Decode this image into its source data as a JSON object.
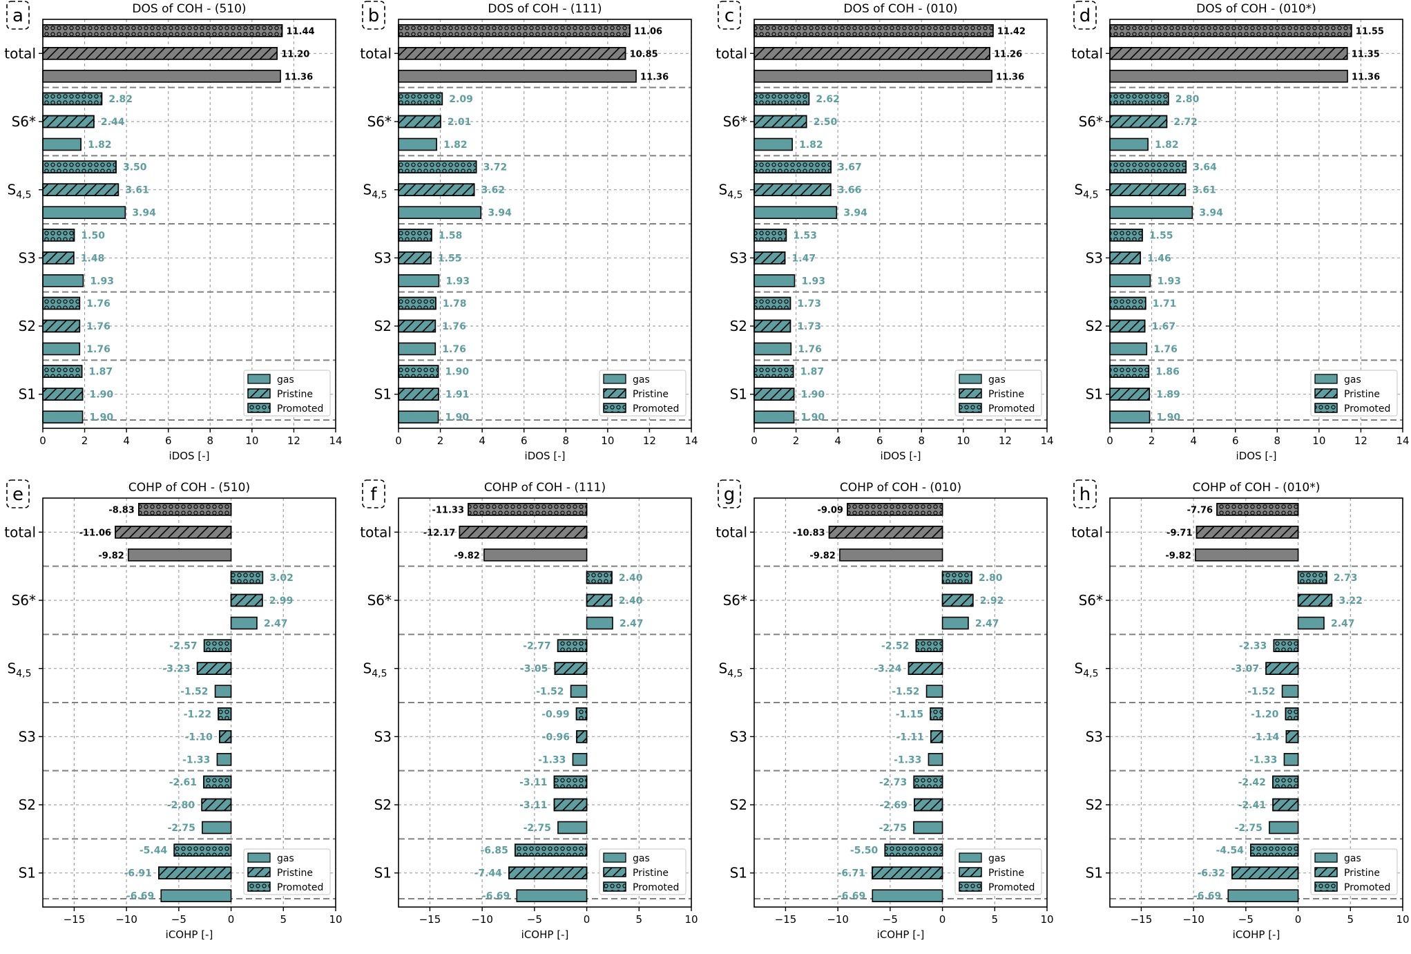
{
  "figure": {
    "colors": {
      "bar_fill": "#5f9ea0",
      "total_fill": "#808080",
      "value_text": "#5f9ea0",
      "total_text": "#000000",
      "grid": "#a0a0a0",
      "separator": "#808080"
    },
    "legend": {
      "placement": "lower-right",
      "entries": [
        {
          "label": "gas",
          "pattern": "solid"
        },
        {
          "label": "Pristine",
          "pattern": "hatch"
        },
        {
          "label": "Promoted",
          "pattern": "circles"
        }
      ]
    },
    "y_categories": [
      "total",
      "S6*",
      "S4,5",
      "S3",
      "S2",
      "S1"
    ],
    "y_tick_labels": [
      {
        "main": "total",
        "sub": ""
      },
      {
        "main": "S6*",
        "sub": ""
      },
      {
        "main": "S",
        "sub": "4,5"
      },
      {
        "main": "S3",
        "sub": ""
      },
      {
        "main": "S2",
        "sub": ""
      },
      {
        "main": "S1",
        "sub": ""
      }
    ]
  },
  "chart_data": [
    {
      "panel_label": "a",
      "type": "bar",
      "orientation": "horizontal",
      "title": "DOS of COH - (510)",
      "xlabel": "iDOS [-]",
      "xlim": [
        0,
        14
      ],
      "xticks": [
        0,
        2,
        4,
        6,
        8,
        10,
        12,
        14
      ],
      "xtick_labels": [
        "0",
        "2",
        "4",
        "6",
        "8",
        "10",
        "12",
        "14"
      ],
      "grid": true,
      "series": [
        {
          "name": "gas",
          "values": [
            11.36,
            1.82,
            3.94,
            1.93,
            1.76,
            1.9
          ]
        },
        {
          "name": "Pristine",
          "values": [
            11.2,
            2.44,
            3.61,
            1.48,
            1.76,
            1.9
          ]
        },
        {
          "name": "Promoted",
          "values": [
            11.44,
            2.82,
            3.5,
            1.5,
            1.76,
            1.87
          ]
        }
      ],
      "data_labels": {
        "gas": [
          "11.36",
          "1.82",
          "3.94",
          "1.93",
          "1.76",
          "1.90"
        ],
        "Pristine": [
          "11.20",
          "2.44",
          "3.61",
          "1.48",
          "1.76",
          "1.90"
        ],
        "Promoted": [
          "11.44",
          "2.82",
          "3.50",
          "1.50",
          "1.76",
          "1.87"
        ]
      }
    },
    {
      "panel_label": "b",
      "type": "bar",
      "orientation": "horizontal",
      "title": "DOS of COH - (111)",
      "xlabel": "iDOS [-]",
      "xlim": [
        0,
        14
      ],
      "xticks": [
        0,
        2,
        4,
        6,
        8,
        10,
        12,
        14
      ],
      "xtick_labels": [
        "0",
        "2",
        "4",
        "6",
        "8",
        "10",
        "12",
        "14"
      ],
      "grid": true,
      "series": [
        {
          "name": "gas",
          "values": [
            11.36,
            1.82,
            3.94,
            1.93,
            1.76,
            1.9
          ]
        },
        {
          "name": "Pristine",
          "values": [
            10.85,
            2.01,
            3.62,
            1.55,
            1.76,
            1.91
          ]
        },
        {
          "name": "Promoted",
          "values": [
            11.06,
            2.09,
            3.72,
            1.58,
            1.78,
            1.9
          ]
        }
      ],
      "data_labels": {
        "gas": [
          "11.36",
          "1.82",
          "3.94",
          "1.93",
          "1.76",
          "1.90"
        ],
        "Pristine": [
          "10.85",
          "2.01",
          "3.62",
          "1.55",
          "1.76",
          "1.91"
        ],
        "Promoted": [
          "11.06",
          "2.09",
          "3.72",
          "1.58",
          "1.78",
          "1.90"
        ]
      }
    },
    {
      "panel_label": "c",
      "type": "bar",
      "orientation": "horizontal",
      "title": "DOS of COH - (010)",
      "xlabel": "iDOS [-]",
      "xlim": [
        0,
        14
      ],
      "xticks": [
        0,
        2,
        4,
        6,
        8,
        10,
        12,
        14
      ],
      "xtick_labels": [
        "0",
        "2",
        "4",
        "6",
        "8",
        "10",
        "12",
        "14"
      ],
      "grid": true,
      "series": [
        {
          "name": "gas",
          "values": [
            11.36,
            1.82,
            3.94,
            1.93,
            1.76,
            1.9
          ]
        },
        {
          "name": "Pristine",
          "values": [
            11.26,
            2.5,
            3.66,
            1.47,
            1.73,
            1.9
          ]
        },
        {
          "name": "Promoted",
          "values": [
            11.42,
            2.62,
            3.67,
            1.53,
            1.73,
            1.87
          ]
        }
      ],
      "data_labels": {
        "gas": [
          "11.36",
          "1.82",
          "3.94",
          "1.93",
          "1.76",
          "1.90"
        ],
        "Pristine": [
          "11.26",
          "2.50",
          "3.66",
          "1.47",
          "1.73",
          "1.90"
        ],
        "Promoted": [
          "11.42",
          "2.62",
          "3.67",
          "1.53",
          "1.73",
          "1.87"
        ]
      }
    },
    {
      "panel_label": "d",
      "type": "bar",
      "orientation": "horizontal",
      "title": "DOS of COH - (010*)",
      "xlabel": "iDOS [-]",
      "xlim": [
        0,
        14
      ],
      "xticks": [
        0,
        2,
        4,
        6,
        8,
        10,
        12,
        14
      ],
      "xtick_labels": [
        "0",
        "2",
        "4",
        "6",
        "8",
        "10",
        "12",
        "14"
      ],
      "grid": true,
      "series": [
        {
          "name": "gas",
          "values": [
            11.36,
            1.82,
            3.94,
            1.93,
            1.76,
            1.9
          ]
        },
        {
          "name": "Pristine",
          "values": [
            11.35,
            2.72,
            3.61,
            1.46,
            1.67,
            1.89
          ]
        },
        {
          "name": "Promoted",
          "values": [
            11.55,
            2.8,
            3.64,
            1.55,
            1.71,
            1.86
          ]
        }
      ],
      "data_labels": {
        "gas": [
          "11.36",
          "1.82",
          "3.94",
          "1.93",
          "1.76",
          "1.90"
        ],
        "Pristine": [
          "11.35",
          "2.72",
          "3.61",
          "1.46",
          "1.67",
          "1.89"
        ],
        "Promoted": [
          "11.55",
          "2.80",
          "3.64",
          "1.55",
          "1.71",
          "1.86"
        ]
      }
    },
    {
      "panel_label": "e",
      "type": "bar",
      "orientation": "horizontal",
      "title": "COHP of COH - (510)",
      "xlabel": "iCOHP [-]",
      "xlim": [
        -18,
        10
      ],
      "xticks": [
        -15,
        -10,
        -5,
        0,
        5,
        10
      ],
      "xtick_labels": [
        "−15",
        "−10",
        "−5",
        "0",
        "5",
        "10"
      ],
      "grid": true,
      "series": [
        {
          "name": "gas",
          "values": [
            -9.82,
            2.47,
            -1.52,
            -1.33,
            -2.75,
            -6.69
          ]
        },
        {
          "name": "Pristine",
          "values": [
            -11.06,
            2.99,
            -3.23,
            -1.1,
            -2.8,
            -6.91
          ]
        },
        {
          "name": "Promoted",
          "values": [
            -8.83,
            3.02,
            -2.57,
            -1.22,
            -2.61,
            -5.44
          ]
        }
      ],
      "data_labels": {
        "gas": [
          "-9.82",
          "2.47",
          "-1.52",
          "-1.33",
          "-2.75",
          "-6.69"
        ],
        "Pristine": [
          "-11.06",
          "2.99",
          "-3.23",
          "-1.10",
          "-2.80",
          "-6.91"
        ],
        "Promoted": [
          "-8.83",
          "3.02",
          "-2.57",
          "-1.22",
          "-2.61",
          "-5.44"
        ]
      }
    },
    {
      "panel_label": "f",
      "type": "bar",
      "orientation": "horizontal",
      "title": "COHP of COH - (111)",
      "xlabel": "iCOHP [-]",
      "xlim": [
        -18,
        10
      ],
      "xticks": [
        -15,
        -10,
        -5,
        0,
        5,
        10
      ],
      "xtick_labels": [
        "−15",
        "−10",
        "−5",
        "0",
        "5",
        "10"
      ],
      "grid": true,
      "series": [
        {
          "name": "gas",
          "values": [
            -9.82,
            2.47,
            -1.52,
            -1.33,
            -2.75,
            -6.69
          ]
        },
        {
          "name": "Pristine",
          "values": [
            -12.17,
            2.4,
            -3.05,
            -0.96,
            -3.11,
            -7.44
          ]
        },
        {
          "name": "Promoted",
          "values": [
            -11.33,
            2.4,
            -2.77,
            -0.99,
            -3.11,
            -6.85
          ]
        }
      ],
      "data_labels": {
        "gas": [
          "-9.82",
          "2.47",
          "-1.52",
          "-1.33",
          "-2.75",
          "-6.69"
        ],
        "Pristine": [
          "-12.17",
          "2.40",
          "-3.05",
          "-0.96",
          "-3.11",
          "-7.44"
        ],
        "Promoted": [
          "-11.33",
          "2.40",
          "-2.77",
          "-0.99",
          "-3.11",
          "-6.85"
        ]
      }
    },
    {
      "panel_label": "g",
      "type": "bar",
      "orientation": "horizontal",
      "title": "COHP of COH - (010)",
      "xlabel": "iCOHP [-]",
      "xlim": [
        -18,
        10
      ],
      "xticks": [
        -15,
        -10,
        -5,
        0,
        5,
        10
      ],
      "xtick_labels": [
        "−15",
        "−10",
        "−5",
        "0",
        "5",
        "10"
      ],
      "grid": true,
      "series": [
        {
          "name": "gas",
          "values": [
            -9.82,
            2.47,
            -1.52,
            -1.33,
            -2.75,
            -6.69
          ]
        },
        {
          "name": "Pristine",
          "values": [
            -10.83,
            2.92,
            -3.24,
            -1.11,
            -2.69,
            -6.71
          ]
        },
        {
          "name": "Promoted",
          "values": [
            -9.09,
            2.8,
            -2.52,
            -1.15,
            -2.73,
            -5.5
          ]
        }
      ],
      "data_labels": {
        "gas": [
          "-9.82",
          "2.47",
          "-1.52",
          "-1.33",
          "-2.75",
          "-6.69"
        ],
        "Pristine": [
          "-10.83",
          "2.92",
          "-3.24",
          "-1.11",
          "-2.69",
          "-6.71"
        ],
        "Promoted": [
          "-9.09",
          "2.80",
          "-2.52",
          "-1.15",
          "-2.73",
          "-5.50"
        ]
      }
    },
    {
      "panel_label": "h",
      "type": "bar",
      "orientation": "horizontal",
      "title": "COHP of COH - (010*)",
      "xlabel": "iCOHP [-]",
      "xlim": [
        -18,
        10
      ],
      "xticks": [
        -15,
        -10,
        -5,
        0,
        5,
        10
      ],
      "xtick_labels": [
        "−15",
        "−10",
        "−5",
        "0",
        "5",
        "10"
      ],
      "grid": true,
      "series": [
        {
          "name": "gas",
          "values": [
            -9.82,
            2.47,
            -1.52,
            -1.33,
            -2.75,
            -6.69
          ]
        },
        {
          "name": "Pristine",
          "values": [
            -9.71,
            3.22,
            -3.07,
            -1.14,
            -2.41,
            -6.32
          ]
        },
        {
          "name": "Promoted",
          "values": [
            -7.76,
            2.73,
            -2.33,
            -1.2,
            -2.42,
            -4.54
          ]
        }
      ],
      "data_labels": {
        "gas": [
          "-9.82",
          "2.47",
          "-1.52",
          "-1.33",
          "-2.75",
          "-6.69"
        ],
        "Pristine": [
          "-9.71",
          "3.22",
          "-3.07",
          "-1.14",
          "-2.41",
          "-6.32"
        ],
        "Promoted": [
          "-7.76",
          "2.73",
          "-2.33",
          "-1.20",
          "-2.42",
          "-4.54"
        ]
      }
    }
  ]
}
